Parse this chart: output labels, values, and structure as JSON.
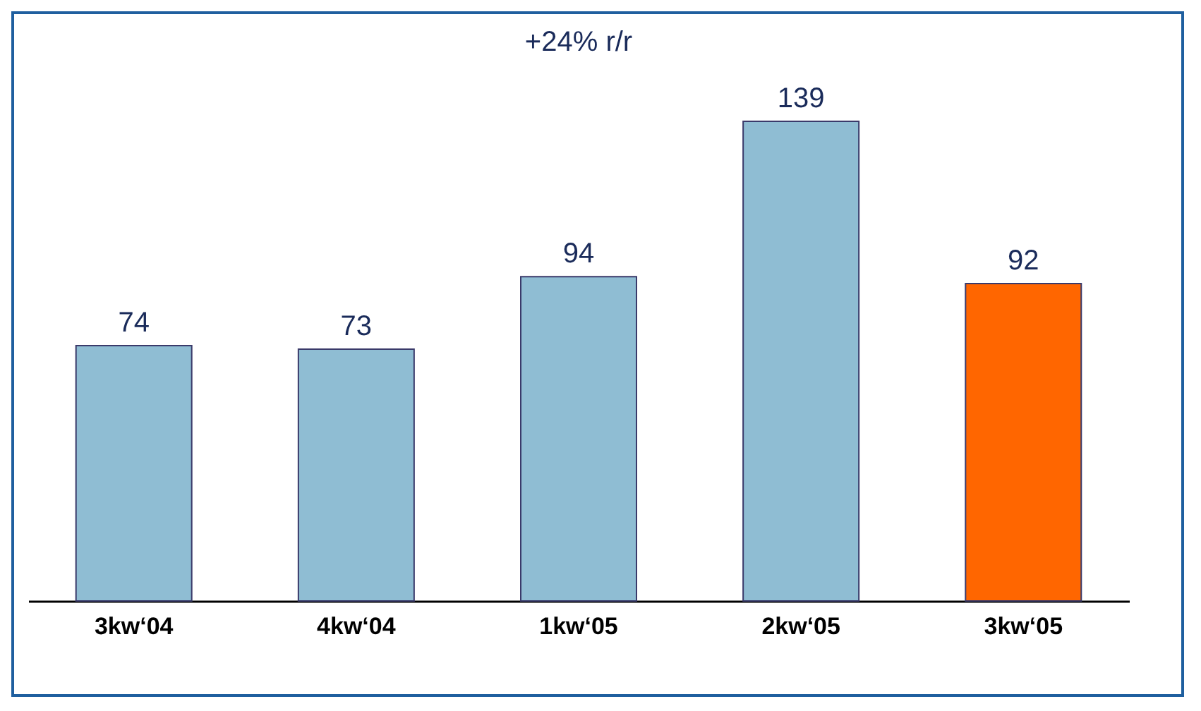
{
  "chart_data": {
    "type": "bar",
    "categories": [
      "3kw‘04",
      "4kw‘04",
      "1kw‘05",
      "2kw‘05",
      "3kw‘05"
    ],
    "values": [
      74,
      73,
      94,
      139,
      92
    ],
    "colors": [
      "#8fbdd3",
      "#8fbdd3",
      "#8fbdd3",
      "#8fbdd3",
      "#ff6600"
    ],
    "data_labels": true,
    "annotations": [
      "+24% r/r"
    ]
  }
}
